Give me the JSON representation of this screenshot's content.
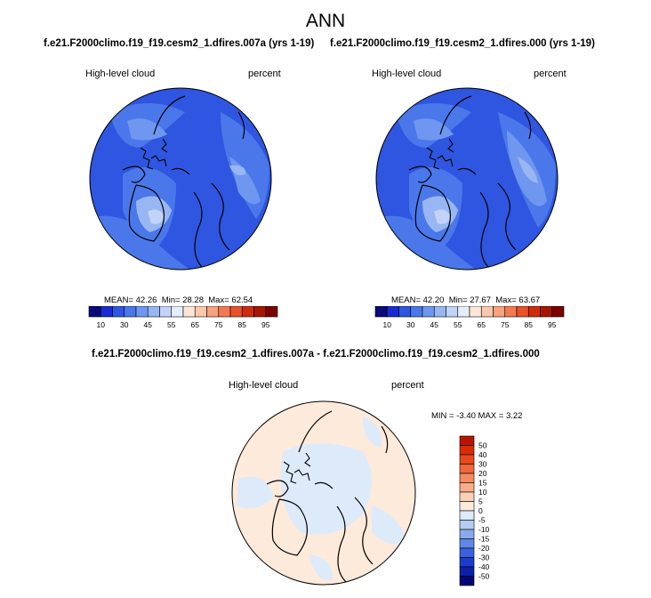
{
  "title": "ANN",
  "panels": [
    {
      "subtitle": "f.e21.F2000climo.f19_f19.cesm2_1.dfires.007a (yrs 1-19)",
      "left_label": "High-level cloud",
      "right_label": "percent",
      "stats": {
        "mean_label": "MEAN=",
        "mean": "42.26",
        "min_label": "Min=",
        "min": "28.28",
        "max_label": "Max=",
        "max": "62.54"
      }
    },
    {
      "subtitle": "f.e21.F2000climo.f19_f19.cesm2_1.dfires.000 (yrs 1-19)",
      "left_label": "High-level cloud",
      "right_label": "percent",
      "stats": {
        "mean_label": "MEAN=",
        "mean": "42.20",
        "min_label": "Min=",
        "min": "27.67",
        "max_label": "Max=",
        "max": "63.67"
      }
    }
  ],
  "diff_panel": {
    "subtitle": "f.e21.F2000climo.f19_f19.cesm2_1.dfires.007a - f.e21.F2000climo.f19_f19.cesm2_1.dfires.000",
    "left_label": "High-level cloud",
    "right_label": "percent",
    "minmax": "MIN = -3.40  MAX =   3.22"
  },
  "colorbar_h": {
    "tick_labels": [
      "10",
      "30",
      "45",
      "55",
      "65",
      "75",
      "85",
      "95"
    ],
    "colors": [
      "#0a0a7a",
      "#1a2bd0",
      "#2f56e0",
      "#4a78ea",
      "#6f97ef",
      "#98b6f3",
      "#c1d4f8",
      "#e6eefc",
      "#fde6d8",
      "#fbc7ad",
      "#f8a27f",
      "#f37a50",
      "#e8512a",
      "#cf2c0d",
      "#a51605",
      "#7a0000"
    ]
  },
  "colorbar_v": {
    "tick_labels": [
      "50",
      "40",
      "30",
      "20",
      "15",
      "10",
      "5",
      "0",
      "-5",
      "-10",
      "-15",
      "-20",
      "-30",
      "-40",
      "-50"
    ],
    "colors": [
      "#b81500",
      "#d82c05",
      "#e84918",
      "#f0673a",
      "#f58c61",
      "#f8ad8a",
      "#fbd0b6",
      "#fdeadb",
      "#dceafa",
      "#b6ccf4",
      "#8aaaee",
      "#5f87e8",
      "#3a62df",
      "#1c3dcc",
      "#0b1fa8",
      "#050577"
    ]
  },
  "chart_data": [
    {
      "type": "heatmap",
      "projection": "north-polar-stereographic",
      "title": "f.e21.F2000climo.f19_f19.cesm2_1.dfires.007a (yrs 1-19)",
      "variable": "High-level cloud",
      "units": "percent",
      "mean": 42.26,
      "min": 28.28,
      "max": 62.54,
      "contour_levels": [
        10,
        15,
        20,
        25,
        30,
        35,
        40,
        45,
        50,
        55,
        60,
        65,
        70,
        75,
        80,
        85,
        90,
        95
      ]
    },
    {
      "type": "heatmap",
      "projection": "north-polar-stereographic",
      "title": "f.e21.F2000climo.f19_f19.cesm2_1.dfires.000 (yrs 1-19)",
      "variable": "High-level cloud",
      "units": "percent",
      "mean": 42.2,
      "min": 27.67,
      "max": 63.67,
      "contour_levels": [
        10,
        15,
        20,
        25,
        30,
        35,
        40,
        45,
        50,
        55,
        60,
        65,
        70,
        75,
        80,
        85,
        90,
        95
      ]
    },
    {
      "type": "heatmap",
      "projection": "north-polar-stereographic",
      "title": "f.e21.F2000climo.f19_f19.cesm2_1.dfires.007a - f.e21.F2000climo.f19_f19.cesm2_1.dfires.000",
      "variable": "High-level cloud",
      "units": "percent",
      "min": -3.4,
      "max": 3.22,
      "contour_levels": [
        -50,
        -40,
        -30,
        -20,
        -15,
        -10,
        -5,
        0,
        5,
        10,
        15,
        20,
        30,
        40,
        50
      ]
    }
  ]
}
